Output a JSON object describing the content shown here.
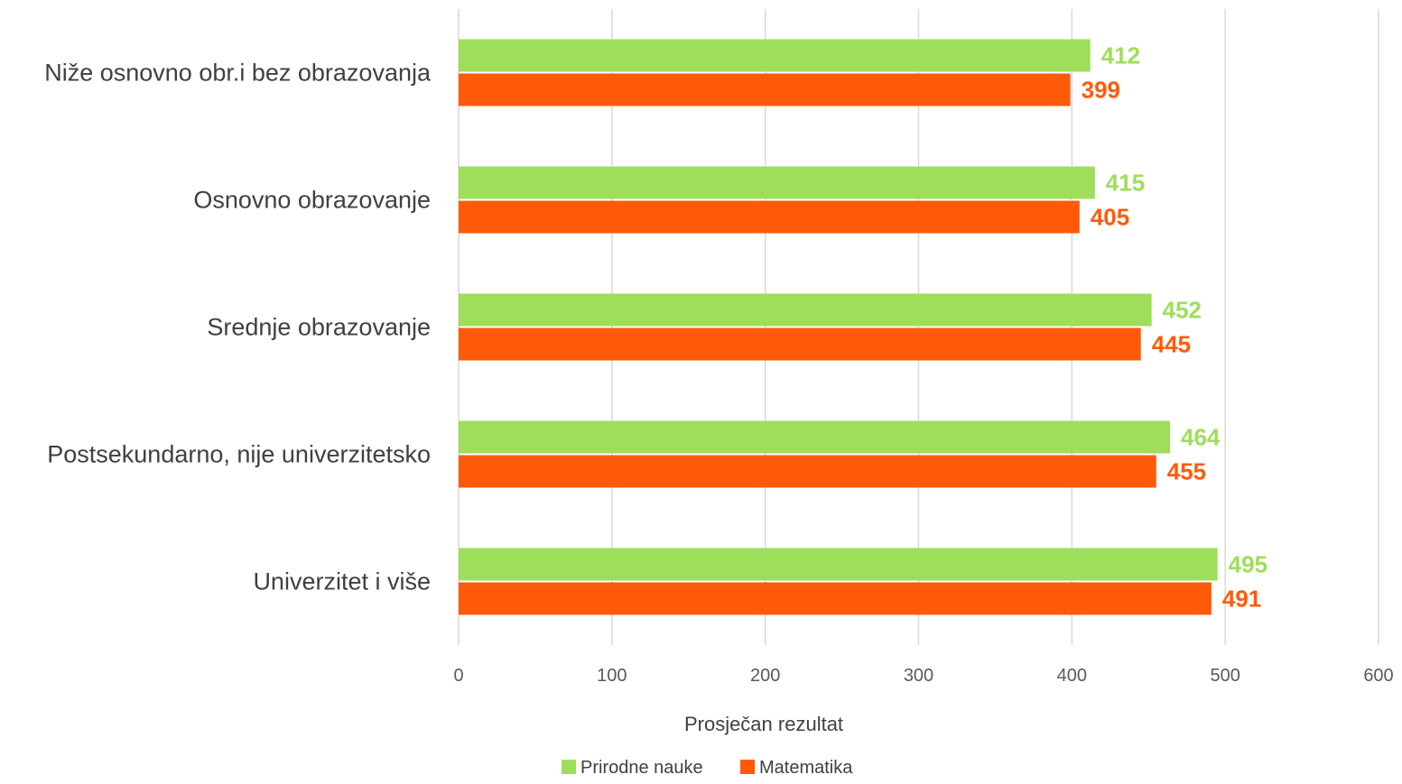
{
  "chart_data": {
    "type": "bar",
    "orientation": "horizontal",
    "categories": [
      "Niže osnovno obr.i bez obrazovanja",
      "Osnovno obrazovanje",
      "Srednje obrazovanje",
      "Postsekundarno, nije univerzitetsko",
      "Univerzitet i više"
    ],
    "series": [
      {
        "name": "Prirodne nauke",
        "color": "#9ede5a",
        "values": [
          412,
          415,
          452,
          464,
          495
        ],
        "labels": [
          "412",
          "415",
          "452",
          "464",
          "495"
        ]
      },
      {
        "name": "Matematika",
        "color": "#ff5a0a",
        "values": [
          399,
          405,
          445,
          455,
          491
        ],
        "labels": [
          "399",
          "405",
          "445",
          "455",
          "491"
        ]
      }
    ],
    "xlabel": "Prosječan rezultat",
    "ylabel": "",
    "xlim": [
      0,
      600
    ],
    "ticks": [
      0,
      100,
      200,
      300,
      400,
      500,
      600
    ],
    "tick_labels": [
      "0",
      "100",
      "200",
      "300",
      "400",
      "500",
      "600"
    ],
    "grid": true,
    "legend_position": "bottom"
  }
}
